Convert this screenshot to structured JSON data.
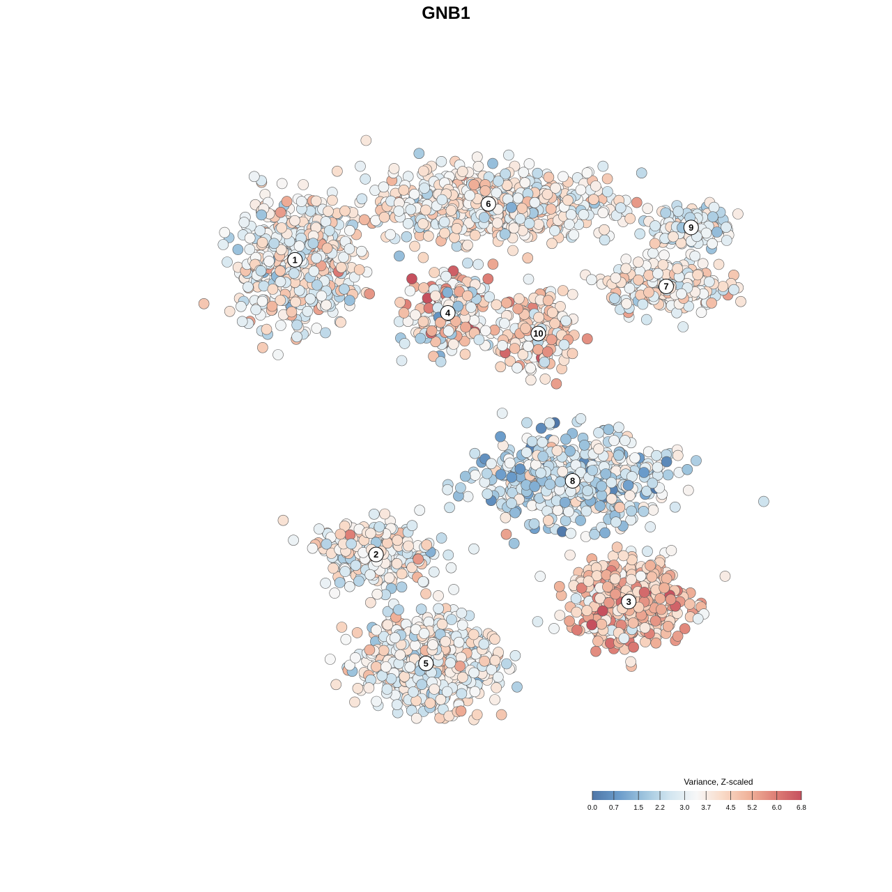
{
  "chart_data": {
    "type": "scatter",
    "title": "GNB1",
    "xlabel": "",
    "ylabel": "",
    "grid": false,
    "colorscale": {
      "title": "Variance, Z-scaled",
      "min": 0.0,
      "max": 6.8,
      "ticks": [
        "0.0",
        "0.7",
        "1.5",
        "2.2",
        "3.0",
        "3.7",
        "4.5",
        "5.2",
        "6.0",
        "6.8"
      ],
      "tick_values": [
        0.0,
        0.7,
        1.5,
        2.2,
        3.0,
        3.7,
        4.5,
        5.2,
        6.0,
        6.8
      ],
      "colors": [
        "#4f77a8",
        "#6a9bca",
        "#9fc5de",
        "#d3e6f0",
        "#f7f7f7",
        "#f9dac7",
        "#f0b29a",
        "#de7f76",
        "#c6505e"
      ],
      "legend_position": "bottom-right"
    },
    "clusters": [
      {
        "label": "1",
        "x": -5.4,
        "y": 6.2,
        "spread": [
          1.6,
          1.8
        ],
        "n": 600,
        "mean": 3.4,
        "sd": 0.9
      },
      {
        "label": "2",
        "x": -2.8,
        "y": -3.8,
        "spread": [
          1.6,
          1.0
        ],
        "n": 280,
        "mean": 3.3,
        "sd": 0.8
      },
      {
        "label": "3",
        "x": 5.3,
        "y": -5.4,
        "spread": [
          1.7,
          1.3
        ],
        "n": 480,
        "mean": 4.6,
        "sd": 0.9
      },
      {
        "label": "4",
        "x": -0.5,
        "y": 4.4,
        "spread": [
          1.2,
          1.1
        ],
        "n": 260,
        "mean": 3.8,
        "sd": 1.3
      },
      {
        "label": "5",
        "x": -1.2,
        "y": -7.5,
        "spread": [
          1.9,
          1.4
        ],
        "n": 620,
        "mean": 3.4,
        "sd": 0.8
      },
      {
        "label": "6",
        "x": 0.8,
        "y": 8.1,
        "spread": [
          3.6,
          1.1
        ],
        "n": 620,
        "mean": 3.6,
        "sd": 0.8
      },
      {
        "label": "7",
        "x": 6.5,
        "y": 5.3,
        "spread": [
          1.6,
          0.8
        ],
        "n": 260,
        "mean": 3.6,
        "sd": 0.8
      },
      {
        "label": "8",
        "x": 3.5,
        "y": -1.3,
        "spread": [
          2.6,
          1.4
        ],
        "n": 520,
        "mean": 2.5,
        "sd": 0.9
      },
      {
        "label": "9",
        "x": 7.3,
        "y": 7.3,
        "spread": [
          1.1,
          0.6
        ],
        "n": 150,
        "mean": 3.0,
        "sd": 0.8
      },
      {
        "label": "10",
        "x": 2.4,
        "y": 3.7,
        "spread": [
          1.0,
          1.2
        ],
        "n": 180,
        "mean": 4.0,
        "sd": 0.9
      }
    ],
    "xlim": [
      -10.5,
      10.5
    ],
    "ylim": [
      -11,
      11
    ]
  }
}
